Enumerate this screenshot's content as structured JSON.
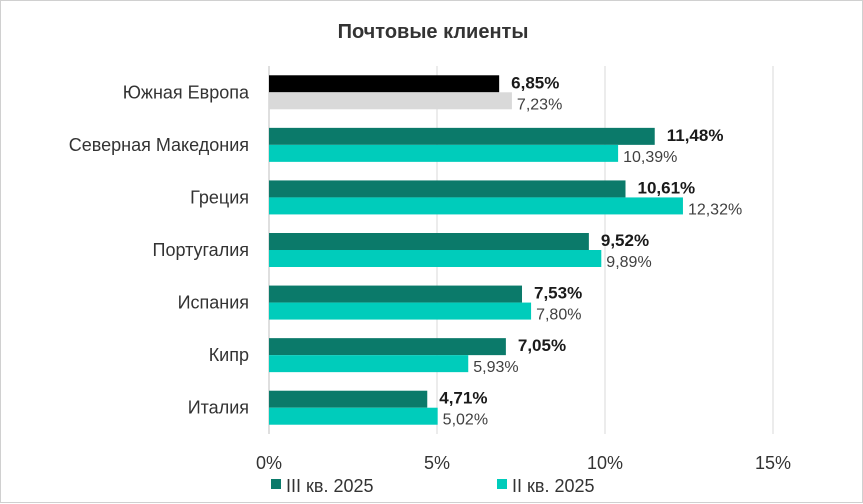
{
  "chart_data": {
    "type": "bar",
    "orientation": "horizontal",
    "title": "Почтовые клиенты",
    "categories": [
      "Южная Европа",
      "Северная Македония",
      "Греция",
      "Португалия",
      "Испания",
      "Кипр",
      "Италия"
    ],
    "series": [
      {
        "name": "III кв. 2025",
        "values": [
          6.85,
          11.48,
          10.61,
          9.52,
          7.53,
          7.05,
          4.71
        ],
        "labels": [
          "6,85%",
          "11,48%",
          "10,61%",
          "9,52%",
          "7,53%",
          "7,05%",
          "4,71%"
        ],
        "color": "#0b7a6a",
        "highlight_color": "#000000"
      },
      {
        "name": "II кв. 2025",
        "values": [
          7.23,
          10.39,
          12.32,
          9.89,
          7.8,
          5.93,
          5.02
        ],
        "labels": [
          "7,23%",
          "10,39%",
          "12,32%",
          "9,89%",
          "7,80%",
          "5,93%",
          "5,02%"
        ],
        "color": "#00ccbb",
        "highlight_color": "#d9d9d9"
      }
    ],
    "xlim": [
      0,
      15
    ],
    "xticks": [
      0,
      5,
      10,
      15
    ],
    "xtick_labels": [
      "0%",
      "5%",
      "10%",
      "15%"
    ],
    "grid": "vertical",
    "legend_position": "bottom"
  }
}
